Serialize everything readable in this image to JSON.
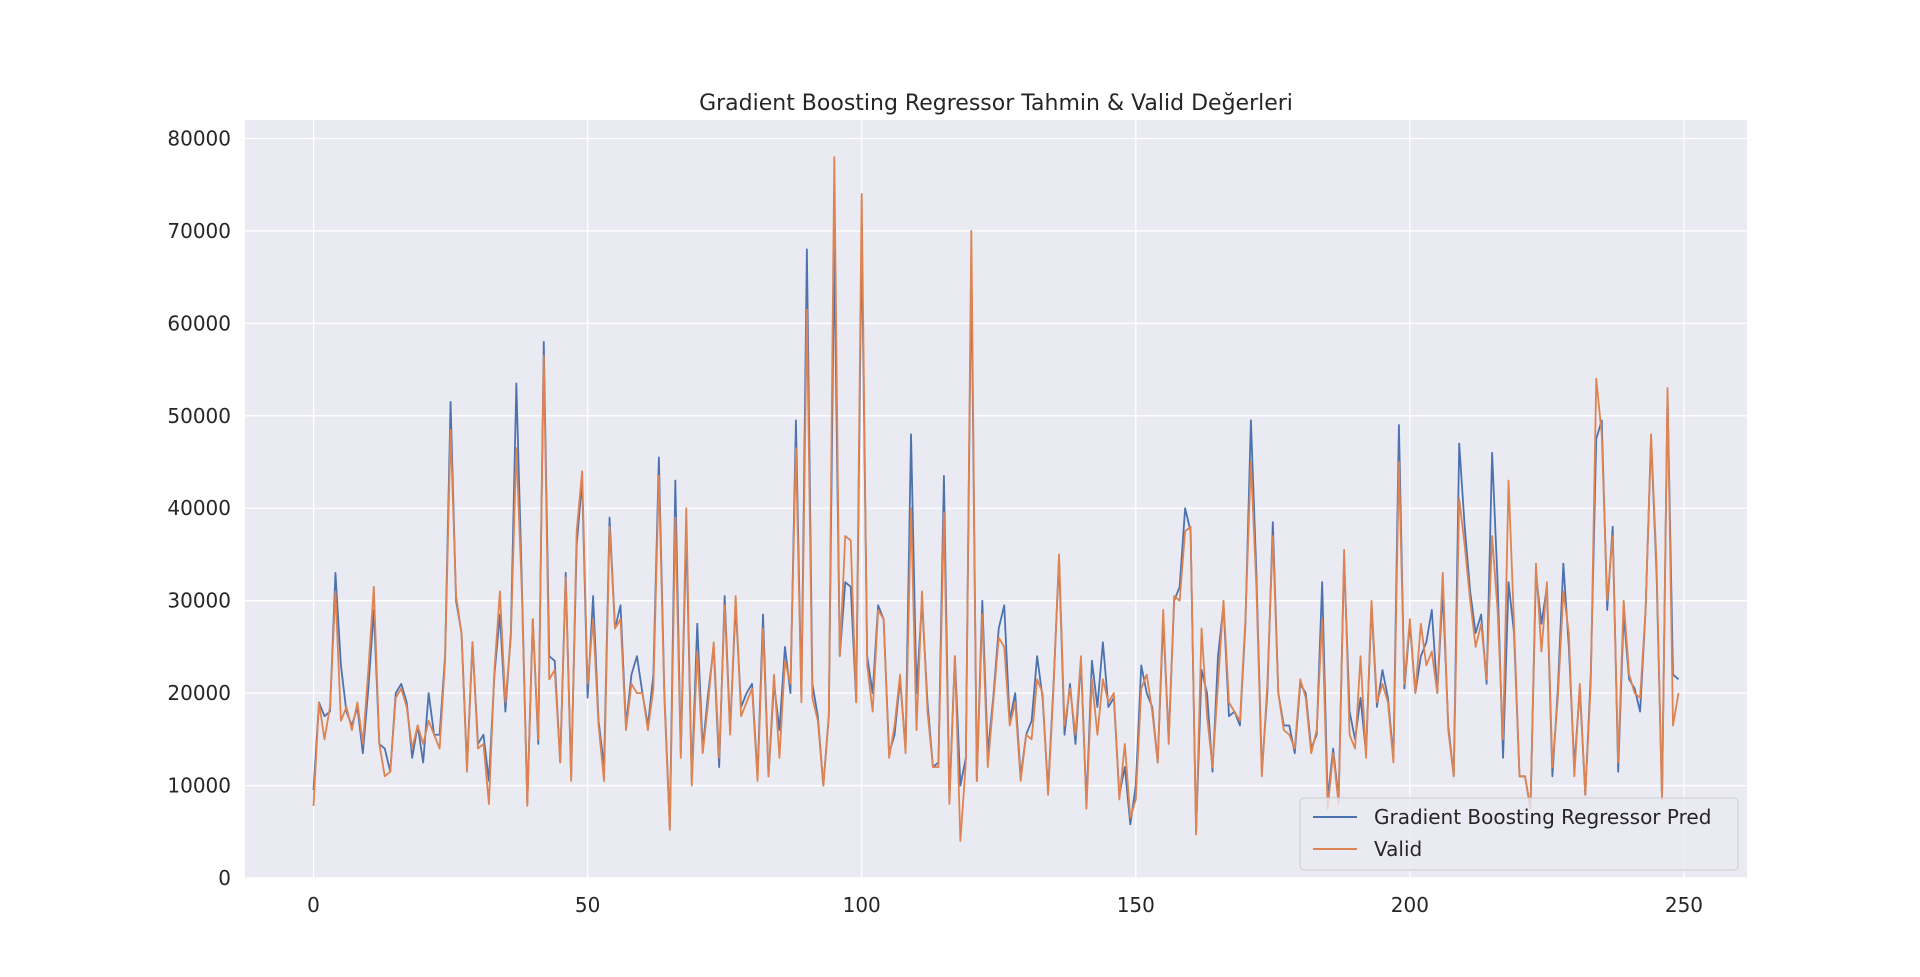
{
  "chart_data": {
    "type": "line",
    "title": "Gradient Boosting Regressor Tahmin & Valid Değerleri",
    "xlabel": "",
    "ylabel": "",
    "xlim": [
      -12.5,
      261.5
    ],
    "ylim": [
      0,
      82000
    ],
    "xticks": [
      0,
      50,
      100,
      150,
      200,
      250
    ],
    "yticks": [
      0,
      10000,
      20000,
      30000,
      40000,
      50000,
      60000,
      70000,
      80000
    ],
    "grid": true,
    "legend_position": "lower right",
    "series": [
      {
        "name": "Gradient Boosting Regressor Pred",
        "color": "#4c72b0",
        "values": [
          9500,
          19000,
          17500,
          18000,
          33000,
          23000,
          18000,
          16500,
          18500,
          13500,
          20500,
          29000,
          14500,
          14000,
          11500,
          20000,
          21000,
          19000,
          13000,
          16500,
          12500,
          20000,
          15500,
          15500,
          24000,
          51500,
          30000,
          26500,
          12000,
          25500,
          14500,
          15500,
          10500,
          22000,
          28500,
          18000,
          26500,
          53500,
          32000,
          8000,
          28000,
          14500,
          58000,
          24000,
          23500,
          12500,
          33000,
          11000,
          36000,
          43000,
          19500,
          30500,
          17000,
          12000,
          39000,
          27000,
          29500,
          16500,
          22000,
          24000,
          20000,
          16500,
          22000,
          45500,
          20000,
          5500,
          43000,
          13500,
          37500,
          10500,
          27500,
          14000,
          20000,
          25000,
          12000,
          30500,
          16000,
          29500,
          18500,
          20000,
          21000,
          11000,
          28500,
          11000,
          21000,
          16000,
          25000,
          20000,
          49500,
          19500,
          68000,
          21000,
          17500,
          10000,
          17500,
          68000,
          24000,
          32000,
          31500,
          19000,
          69500,
          24000,
          20000,
          29500,
          28000,
          13500,
          15500,
          21500,
          14000,
          48000,
          20000,
          30000,
          19000,
          12000,
          12500,
          43500,
          8500,
          24000,
          10000,
          13000,
          66500,
          10500,
          30000,
          13500,
          19500,
          27000,
          29500,
          17000,
          20000,
          11000,
          15500,
          17000,
          24000,
          19500,
          9500,
          21000,
          34500,
          15500,
          21000,
          14500,
          23500,
          8000,
          23500,
          18500,
          25500,
          18500,
          19500,
          9000,
          12000,
          5800,
          10000,
          23000,
          20000,
          18500,
          12500,
          28000,
          15000,
          30000,
          31500,
          40000,
          37500,
          5000,
          22500,
          20000,
          11500,
          24000,
          29500,
          17500,
          18000,
          16500,
          27500,
          49500,
          33000,
          11500,
          20000,
          38500,
          20000,
          16500,
          16500,
          13500,
          21000,
          20000,
          14000,
          15500,
          32000,
          8500,
          14000,
          8500,
          34500,
          18000,
          15000,
          19500,
          13500,
          29500,
          18500,
          22500,
          19500,
          13000,
          49000,
          20500,
          27500,
          20000,
          24000,
          25500,
          29000,
          20000,
          31000,
          16500,
          11000,
          47000,
          38000,
          31000,
          26500,
          28500,
          21000,
          46000,
          32000,
          13000,
          32000,
          26500,
          11000,
          11000,
          7500,
          33000,
          27500,
          31500,
          11000,
          20500,
          34000,
          25000,
          12000,
          20500,
          9000,
          22000,
          47500,
          49500,
          29000,
          38000,
          11500,
          28500,
          21500,
          20500,
          18000,
          29000,
          47500,
          33000,
          8500,
          52500,
          22000,
          21500
        ],
        "valid_values": [
          7800,
          19000,
          15000,
          18500,
          31000,
          17000,
          18500,
          16000,
          19000,
          14500,
          22500,
          31500,
          14500,
          11000,
          11500,
          19500,
          20500,
          18500,
          14000,
          16500,
          14500,
          17000,
          15500,
          14000,
          23500,
          48500,
          30500,
          26500,
          11500,
          25500,
          14000,
          14500,
          8000,
          22500,
          31000,
          19000,
          26000,
          46500,
          31000,
          7800,
          28000,
          15000,
          56500,
          21500,
          22500,
          12500,
          32500,
          10500,
          37500,
          44000,
          21000,
          28000,
          16500,
          10500,
          38000,
          27000,
          28000,
          16000,
          21000,
          20000,
          20000,
          16000,
          20500,
          43500,
          19500,
          5200,
          39000,
          13000,
          40000,
          10000,
          24500,
          13500,
          19000,
          25500,
          13000,
          29500,
          15500,
          30500,
          17500,
          19000,
          20500,
          10500,
          27000,
          11000,
          22000,
          13000,
          23500,
          21000,
          46500,
          19000,
          61500,
          19500,
          17000,
          10000,
          17500,
          78000,
          24000,
          37000,
          36500,
          19000,
          74000,
          23000,
          18000,
          29000,
          28000,
          13000,
          16500,
          22000,
          13500,
          40000,
          16000,
          31000,
          18000,
          12000,
          12000,
          39500,
          8000,
          24000,
          4000,
          12500,
          70000,
          10500,
          28500,
          12000,
          19000,
          26000,
          25000,
          16500,
          19000,
          10500,
          15500,
          15000,
          21500,
          20000,
          9000,
          20500,
          35000,
          16500,
          20500,
          15500,
          24000,
          7500,
          21500,
          15500,
          21500,
          19000,
          20000,
          8500,
          14500,
          6500,
          8500,
          20500,
          22000,
          18000,
          12500,
          29000,
          14500,
          30500,
          30000,
          37500,
          38000,
          4700,
          27000,
          17500,
          12000,
          21000,
          30000,
          19000,
          18000,
          17000,
          28000,
          45000,
          31500,
          11000,
          21000,
          37000,
          20000,
          16000,
          15500,
          14000,
          21500,
          19500,
          13500,
          16000,
          28000,
          7500,
          13500,
          8000,
          35500,
          15500,
          14000,
          24000,
          13000,
          30000,
          19000,
          21000,
          19000,
          12500,
          45000,
          21000,
          28000,
          20000,
          27500,
          23000,
          24500,
          20000,
          33000,
          16000,
          11000,
          41000,
          36000,
          30000,
          25000,
          27500,
          21500,
          37000,
          29000,
          15000,
          43000,
          27500,
          11000,
          11000,
          7500,
          34000,
          24500,
          32000,
          12000,
          19500,
          31000,
          26500,
          11000,
          21000,
          9000,
          21000,
          54000,
          48000,
          30000,
          37000,
          12500,
          30000,
          22000,
          20000,
          19500,
          29000,
          48000,
          34000,
          8500,
          53000,
          16500,
          20000
        ]
      },
      {
        "name": "Valid",
        "color": "#dd8452",
        "values": []
      }
    ]
  }
}
